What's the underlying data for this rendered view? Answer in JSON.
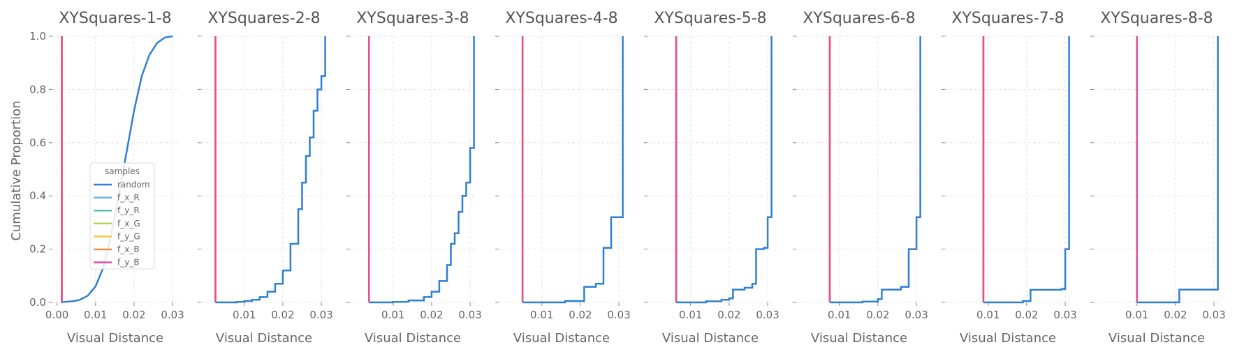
{
  "chart_data": {
    "type": "line",
    "subtype": "ecdf-small-multiples",
    "ylabel": "Cumulative Proportion",
    "xlabel": "Visual Distance",
    "ylim": [
      0,
      1.0
    ],
    "y_ticks": [
      "0.0",
      "0.2",
      "0.4",
      "0.6",
      "0.8",
      "1.0"
    ],
    "grid": true,
    "legend": {
      "title": "samples",
      "location": "lower-right of first panel",
      "entries": [
        {
          "name": "random",
          "color": "#2f7fd3"
        },
        {
          "name": "f_x_R",
          "color": "#6bb7e3"
        },
        {
          "name": "f_y_R",
          "color": "#5bbfae"
        },
        {
          "name": "f_x_G",
          "color": "#b3d35a"
        },
        {
          "name": "f_y_G",
          "color": "#f7c843"
        },
        {
          "name": "f_x_B",
          "color": "#f08a3a"
        },
        {
          "name": "f_y_B",
          "color": "#e94a9e"
        }
      ]
    },
    "panels": [
      {
        "title": "XYSquares-1-8",
        "xlim": [
          0.0,
          0.03
        ],
        "x_ticks": [
          "0.00",
          "0.01",
          "0.02",
          "0.03"
        ],
        "x_tick_values": [
          0.0,
          0.01,
          0.02,
          0.03
        ],
        "factor_distance": 0.00125,
        "random": [
          [
            0.0012,
            0.0
          ],
          [
            0.002,
            0.002
          ],
          [
            0.004,
            0.004
          ],
          [
            0.006,
            0.01
          ],
          [
            0.008,
            0.025
          ],
          [
            0.01,
            0.06
          ],
          [
            0.012,
            0.13
          ],
          [
            0.014,
            0.25
          ],
          [
            0.016,
            0.4
          ],
          [
            0.018,
            0.56
          ],
          [
            0.02,
            0.72
          ],
          [
            0.022,
            0.85
          ],
          [
            0.024,
            0.93
          ],
          [
            0.026,
            0.975
          ],
          [
            0.028,
            0.995
          ],
          [
            0.03,
            1.0
          ]
        ]
      },
      {
        "title": "XYSquares-2-8",
        "xlim": [
          0.0,
          0.03
        ],
        "x_ticks": [
          "0.01",
          "0.02",
          "0.03"
        ],
        "x_tick_values": [
          0.01,
          0.02,
          0.03
        ],
        "factor_distance": 0.0025,
        "random": [
          [
            0.0025,
            0.0
          ],
          [
            0.008,
            0.002
          ],
          [
            0.01,
            0.005
          ],
          [
            0.012,
            0.01
          ],
          [
            0.014,
            0.02
          ],
          [
            0.016,
            0.04
          ],
          [
            0.018,
            0.07
          ],
          [
            0.02,
            0.12
          ],
          [
            0.022,
            0.22
          ],
          [
            0.024,
            0.35
          ],
          [
            0.025,
            0.45
          ],
          [
            0.026,
            0.55
          ],
          [
            0.027,
            0.62
          ],
          [
            0.028,
            0.72
          ],
          [
            0.029,
            0.8
          ],
          [
            0.03,
            0.85
          ],
          [
            0.031,
            0.86
          ],
          [
            0.031,
            1.0
          ]
        ]
      },
      {
        "title": "XYSquares-3-8",
        "xlim": [
          0.0,
          0.03
        ],
        "x_ticks": [
          "0.01",
          "0.02",
          "0.03"
        ],
        "x_tick_values": [
          0.01,
          0.02,
          0.03
        ],
        "factor_distance": 0.00375,
        "random": [
          [
            0.00375,
            0.0
          ],
          [
            0.01,
            0.002
          ],
          [
            0.014,
            0.007
          ],
          [
            0.018,
            0.02
          ],
          [
            0.02,
            0.04
          ],
          [
            0.022,
            0.08
          ],
          [
            0.024,
            0.14
          ],
          [
            0.025,
            0.22
          ],
          [
            0.026,
            0.26
          ],
          [
            0.027,
            0.34
          ],
          [
            0.028,
            0.4
          ],
          [
            0.029,
            0.45
          ],
          [
            0.03,
            0.58
          ],
          [
            0.031,
            0.63
          ],
          [
            0.031,
            1.0
          ]
        ]
      },
      {
        "title": "XYSquares-4-8",
        "xlim": [
          0.0,
          0.03
        ],
        "x_ticks": [
          "0.01",
          "0.02",
          "0.03"
        ],
        "x_tick_values": [
          0.01,
          0.02,
          0.03
        ],
        "factor_distance": 0.005,
        "random": [
          [
            0.005,
            0.0
          ],
          [
            0.016,
            0.005
          ],
          [
            0.021,
            0.012
          ],
          [
            0.021,
            0.058
          ],
          [
            0.024,
            0.058
          ],
          [
            0.024,
            0.07
          ],
          [
            0.026,
            0.07
          ],
          [
            0.026,
            0.205
          ],
          [
            0.028,
            0.205
          ],
          [
            0.028,
            0.32
          ],
          [
            0.031,
            0.32
          ],
          [
            0.031,
            1.0
          ]
        ]
      },
      {
        "title": "XYSquares-5-8",
        "xlim": [
          0.0,
          0.03
        ],
        "x_ticks": [
          "0.01",
          "0.02",
          "0.03"
        ],
        "x_tick_values": [
          0.01,
          0.02,
          0.03
        ],
        "factor_distance": 0.00625,
        "random": [
          [
            0.00625,
            0.0
          ],
          [
            0.014,
            0.004
          ],
          [
            0.018,
            0.01
          ],
          [
            0.02,
            0.015
          ],
          [
            0.021,
            0.048
          ],
          [
            0.024,
            0.055
          ],
          [
            0.026,
            0.07
          ],
          [
            0.027,
            0.2
          ],
          [
            0.029,
            0.205
          ],
          [
            0.03,
            0.32
          ],
          [
            0.031,
            0.33
          ],
          [
            0.031,
            1.0
          ]
        ]
      },
      {
        "title": "XYSquares-6-8",
        "xlim": [
          0.0,
          0.03
        ],
        "x_ticks": [
          "0.01",
          "0.02",
          "0.03"
        ],
        "x_tick_values": [
          0.01,
          0.02,
          0.03
        ],
        "factor_distance": 0.0075,
        "random": [
          [
            0.0075,
            0.0
          ],
          [
            0.016,
            0.003
          ],
          [
            0.02,
            0.012
          ],
          [
            0.021,
            0.048
          ],
          [
            0.026,
            0.058
          ],
          [
            0.028,
            0.07
          ],
          [
            0.028,
            0.2
          ],
          [
            0.03,
            0.205
          ],
          [
            0.03,
            0.32
          ],
          [
            0.031,
            0.32
          ],
          [
            0.031,
            1.0
          ]
        ]
      },
      {
        "title": "XYSquares-7-8",
        "xlim": [
          0.0,
          0.03
        ],
        "x_ticks": [
          "0.01",
          "0.02",
          "0.03"
        ],
        "x_tick_values": [
          0.01,
          0.02,
          0.03
        ],
        "factor_distance": 0.00875,
        "random": [
          [
            0.00875,
            0.0
          ],
          [
            0.019,
            0.005
          ],
          [
            0.021,
            0.047
          ],
          [
            0.029,
            0.05
          ],
          [
            0.03,
            0.2
          ],
          [
            0.031,
            0.2
          ],
          [
            0.031,
            0.32
          ],
          [
            0.031,
            1.0
          ]
        ]
      },
      {
        "title": "XYSquares-8-8",
        "xlim": [
          0.0,
          0.03
        ],
        "x_ticks": [
          "0.01",
          "0.02",
          "0.03"
        ],
        "x_tick_values": [
          0.01,
          0.02,
          0.03
        ],
        "factor_distance": 0.01,
        "random": [
          [
            0.01,
            0.0
          ],
          [
            0.021,
            0.0
          ],
          [
            0.021,
            0.048
          ],
          [
            0.031,
            0.048
          ],
          [
            0.031,
            1.0
          ]
        ]
      }
    ]
  }
}
